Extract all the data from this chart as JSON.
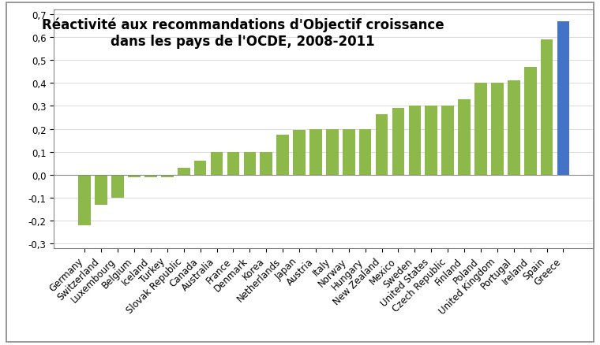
{
  "title_line1": "Réactivité aux recommandations d'Objectif croissance",
  "title_line2": "dans les pays de l'OCDE, 2008-2011",
  "categories": [
    "Germany",
    "Switzerland",
    "Luxembourg",
    "Belgium",
    "Iceland",
    "Turkey",
    "Slovak Republic",
    "Canada",
    "Australia",
    "France",
    "Denmark",
    "Korea",
    "Netherlands",
    "Japan",
    "Austria",
    "Italy",
    "Norway",
    "Hungary",
    "New Zealand",
    "Mexico",
    "Sweden",
    "United States",
    "Czech Republic",
    "Finland",
    "Poland",
    "United Kingdom",
    "Portugal",
    "Ireland",
    "Spain",
    "Greece"
  ],
  "values": [
    -0.22,
    -0.13,
    -0.1,
    -0.01,
    -0.01,
    -0.01,
    0.03,
    0.06,
    0.1,
    0.1,
    0.1,
    0.1,
    0.175,
    0.195,
    0.2,
    0.2,
    0.2,
    0.2,
    0.265,
    0.29,
    0.3,
    0.3,
    0.3,
    0.33,
    0.4,
    0.4,
    0.41,
    0.47,
    0.59,
    0.67
  ],
  "bar_color_green": "#8DB84A",
  "bar_color_blue": "#4472C4",
  "ylim": [
    -0.32,
    0.72
  ],
  "yticks": [
    -0.3,
    -0.2,
    -0.1,
    0.0,
    0.1,
    0.2,
    0.3,
    0.4,
    0.5,
    0.6,
    0.7
  ],
  "ytick_labels": [
    "-0,3",
    "-0,2",
    "-0,1",
    "0,0",
    "0,1",
    "0,2",
    "0,3",
    "0,4",
    "0,5",
    "0,6",
    "0,7"
  ],
  "background_color": "#FFFFFF",
  "plot_bg_color": "#FFFFFF",
  "grid_color": "#CCCCCC",
  "title_fontsize": 12,
  "tick_fontsize": 8.5,
  "border_color": "#888888"
}
